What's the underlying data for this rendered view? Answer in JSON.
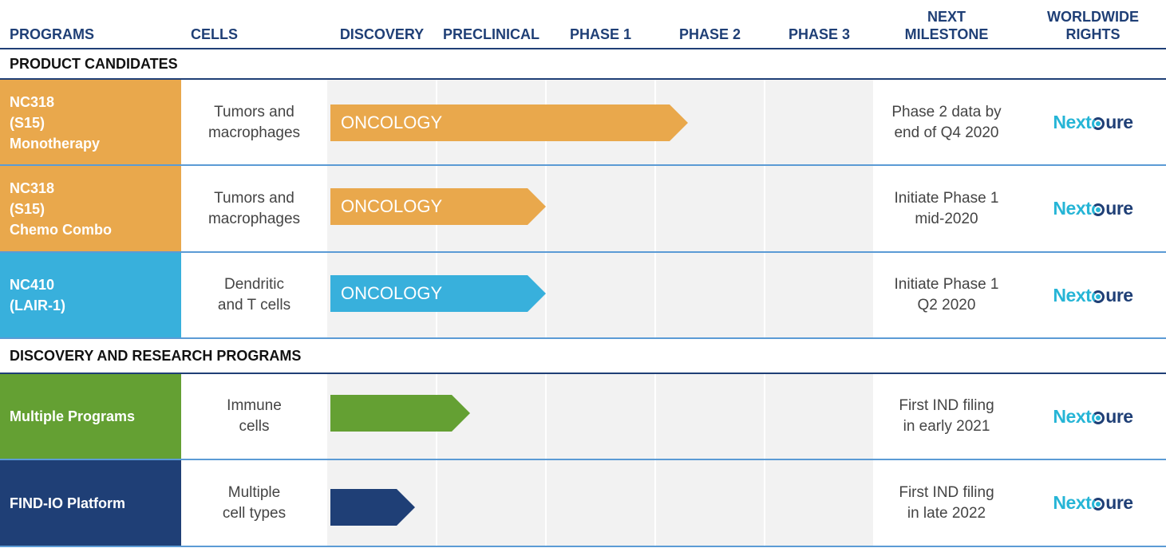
{
  "header": {
    "programs": "PROGRAMS",
    "cells": "CELLS",
    "discovery": "DISCOVERY",
    "preclinical": "PRECLINICAL",
    "phase1": "PHASE 1",
    "phase2": "PHASE 2",
    "phase3": "PHASE 3",
    "next_milestone": "NEXT\nMILESTONE",
    "worldwide_rights": "WORLDWIDE\nRIGHTS"
  },
  "sections": {
    "product_candidates": "PRODUCT CANDIDATES",
    "discovery_research": "DISCOVERY AND RESEARCH PROGRAMS"
  },
  "rows": [
    {
      "program": "NC318\n(S15)\nMonotherapy",
      "color": "#e9a84c",
      "cells": "Tumors and\nmacrophages",
      "arrow_label": "ONCOLOGY",
      "arrow_color": "#e9a84c",
      "stage": "Phase 2",
      "milestone": "Phase 2 data by\nend of Q4 2020",
      "rights_logo": "NextCure"
    },
    {
      "program": "NC318\n(S15)\nChemo Combo",
      "color": "#e9a84c",
      "cells": "Tumors and\nmacrophages",
      "arrow_label": "ONCOLOGY",
      "arrow_color": "#e9a84c",
      "stage": "Phase 1",
      "milestone": "Initiate Phase 1\nmid-2020",
      "rights_logo": "NextCure"
    },
    {
      "program": "NC410\n(LAIR-1)",
      "color": "#38b0dc",
      "cells": "Dendritic\nand T cells",
      "arrow_label": "ONCOLOGY",
      "arrow_color": "#38b0dc",
      "stage": "Phase 1",
      "milestone": "Initiate Phase 1\nQ2 2020",
      "rights_logo": "NextCure"
    },
    {
      "program": "Multiple Programs",
      "color": "#64a033",
      "cells": "Immune\ncells",
      "arrow_label": "",
      "arrow_color": "#64a033",
      "stage": "Preclinical",
      "milestone": "First IND filing\nin early 2021",
      "rights_logo": "NextCure"
    },
    {
      "program": "FIND-IO Platform",
      "color": "#1f3f76",
      "cells": "Multiple\ncell types",
      "arrow_label": "",
      "arrow_color": "#1f3f76",
      "stage": "Discovery",
      "milestone": "First IND filing\nin late 2022",
      "rights_logo": "NextCure"
    }
  ]
}
